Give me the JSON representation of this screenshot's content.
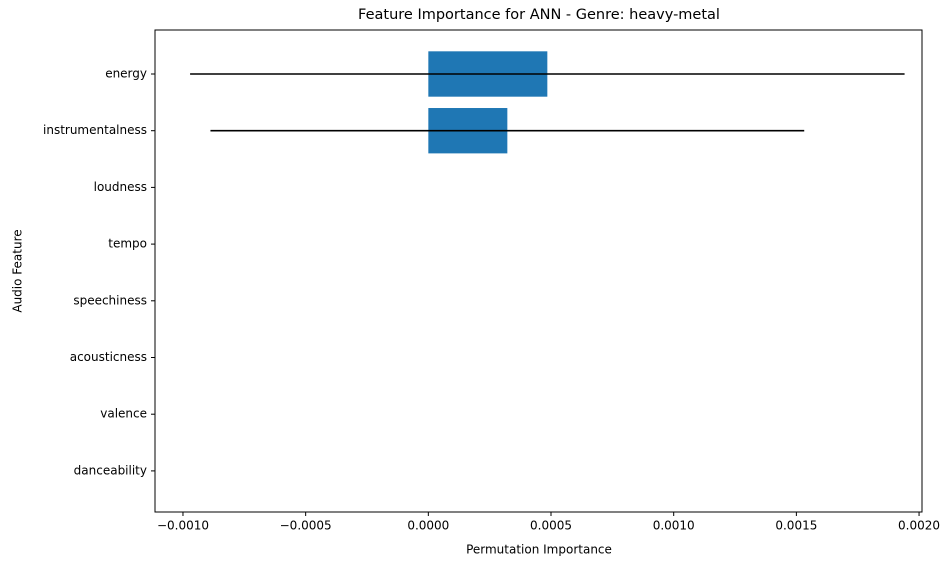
{
  "chart_data": {
    "type": "barh",
    "title": "Feature Importance for ANN - Genre: heavy-metal",
    "xlabel": "Permutation Importance",
    "ylabel": "Audio Feature",
    "categories": [
      "energy",
      "instrumentalness",
      "loudness",
      "tempo",
      "speechiness",
      "acousticness",
      "valence",
      "danceability"
    ],
    "values": [
      0.000485,
      0.000322,
      0,
      0,
      0,
      0,
      0,
      0
    ],
    "xerr": [
      0.001456,
      0.00121,
      0,
      0,
      0,
      0,
      0,
      0
    ],
    "color": "#1f77b4",
    "error_color": "#000000",
    "xlim": [
      -0.001114,
      0.002012
    ],
    "xticks": [
      {
        "value": -0.001,
        "label": "−0.0010"
      },
      {
        "value": -0.0005,
        "label": "−0.0005"
      },
      {
        "value": 0,
        "label": "0.0000"
      },
      {
        "value": 0.0005,
        "label": "0.0005"
      },
      {
        "value": 0.001,
        "label": "0.0010"
      },
      {
        "value": 0.0015,
        "label": "0.0015"
      },
      {
        "value": 0.002,
        "label": "0.0020"
      }
    ]
  }
}
